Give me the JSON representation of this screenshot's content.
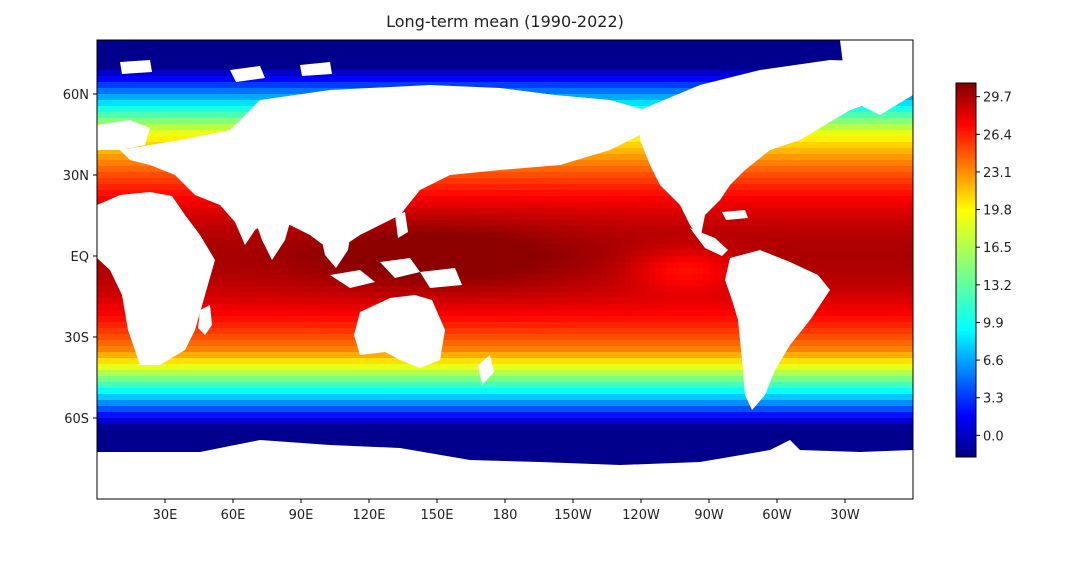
{
  "chart_data": {
    "type": "heatmap",
    "title": "Long-term mean (1990-2022)",
    "xlabel": "",
    "ylabel": "",
    "map_projection": "equirectangular",
    "x_range_lon": [
      0,
      360
    ],
    "y_range_lat": [
      -90,
      80
    ],
    "x_ticks": [
      {
        "lon": 30,
        "label": "30E"
      },
      {
        "lon": 60,
        "label": "60E"
      },
      {
        "lon": 90,
        "label": "90E"
      },
      {
        "lon": 120,
        "label": "120E"
      },
      {
        "lon": 150,
        "label": "150E"
      },
      {
        "lon": 180,
        "label": "180"
      },
      {
        "lon": 210,
        "label": "150W"
      },
      {
        "lon": 240,
        "label": "120W"
      },
      {
        "lon": 270,
        "label": "90W"
      },
      {
        "lon": 300,
        "label": "60W"
      },
      {
        "lon": 330,
        "label": "30W"
      }
    ],
    "y_ticks": [
      {
        "lat": 60,
        "label": "60N"
      },
      {
        "lat": 30,
        "label": "30N"
      },
      {
        "lat": 0,
        "label": "EQ"
      },
      {
        "lat": -30,
        "label": "30S"
      },
      {
        "lat": -60,
        "label": "60S"
      }
    ],
    "colorbar": {
      "colormap": "jet",
      "range": [
        -1.9,
        30.9
      ],
      "ticks": [
        0.0,
        3.3,
        6.6,
        9.9,
        13.2,
        16.5,
        19.8,
        23.1,
        26.4,
        29.7
      ],
      "tick_labels": [
        "0.0",
        "3.3",
        "6.6",
        "9.9",
        "13.2",
        "16.5",
        "19.8",
        "23.1",
        "26.4",
        "29.7"
      ],
      "stops": [
        "#000080",
        "#0000ff",
        "#0080ff",
        "#00ffff",
        "#80ff80",
        "#ffff00",
        "#ff8000",
        "#ff0000",
        "#800000"
      ]
    },
    "land_color": "#ffffff",
    "field_description": "Climatological mean sea surface temperature; warmest (~29-30) in the western Pacific warm pool and equatorial Indian Ocean, decreasing poleward to ~0 near 60S and in the Arctic"
  }
}
